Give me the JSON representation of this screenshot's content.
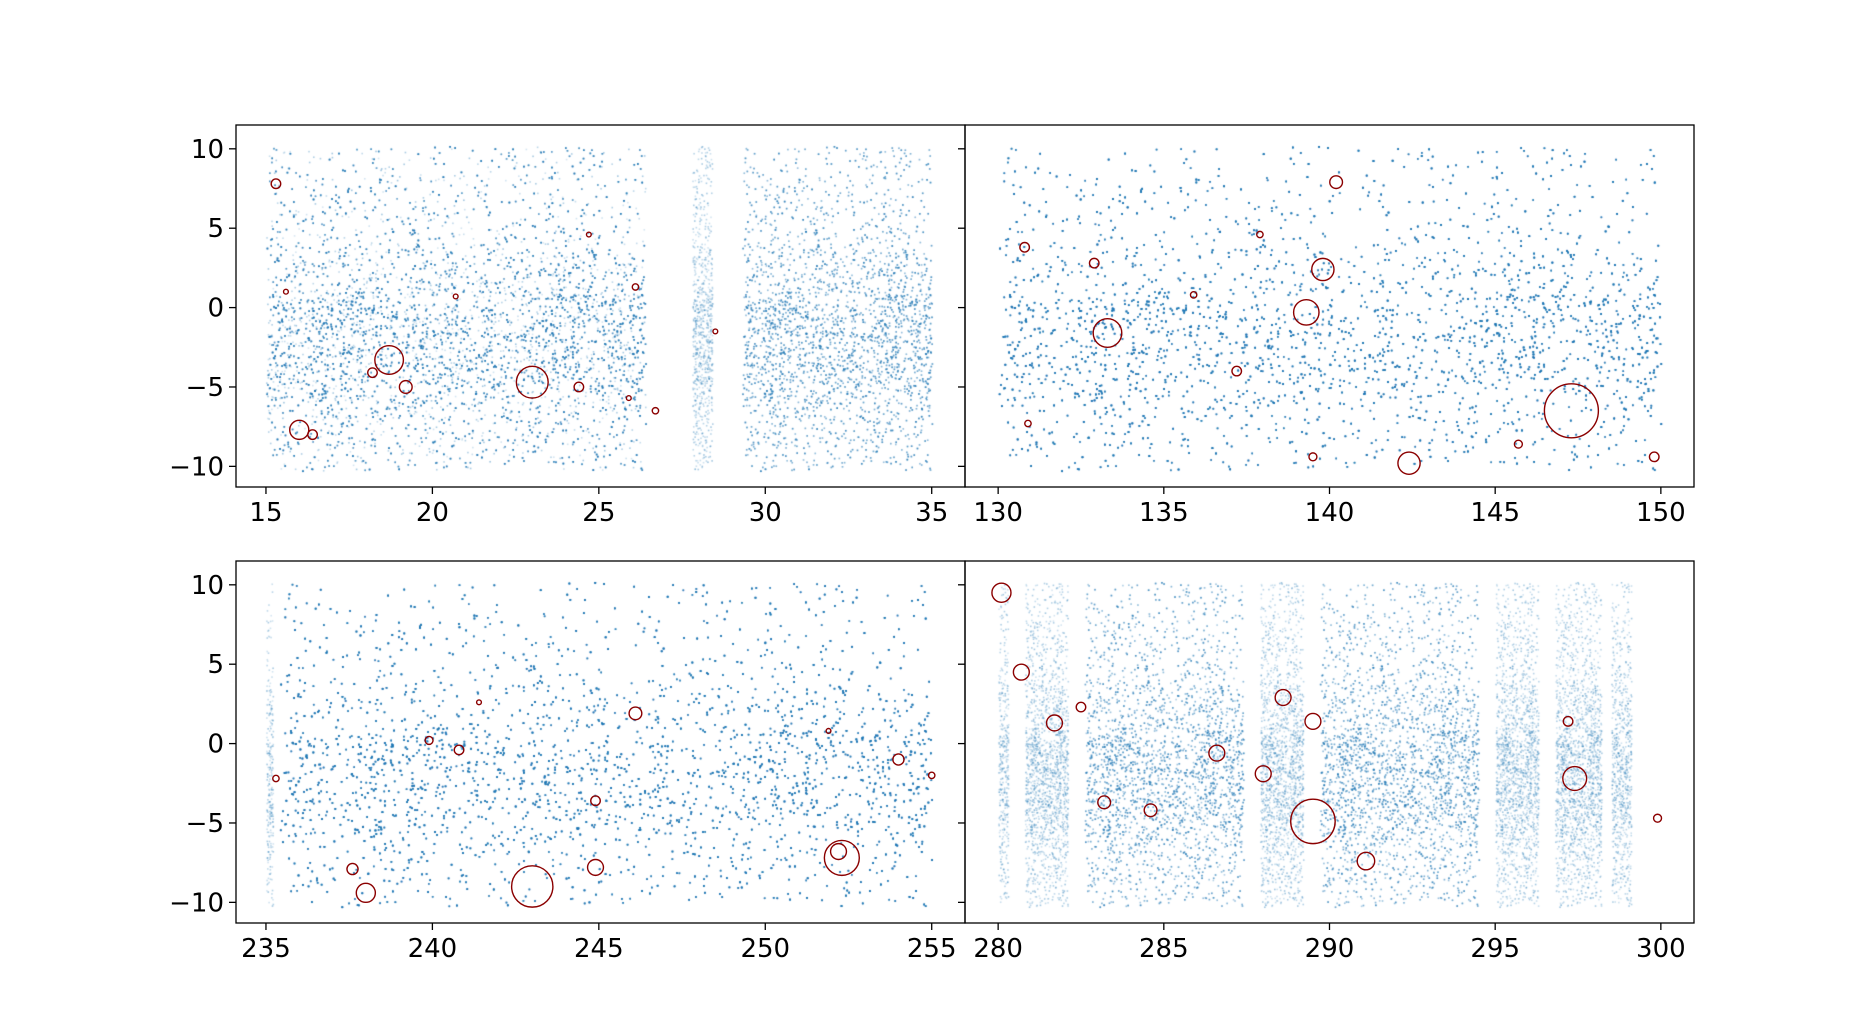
{
  "figure": {
    "colors": {
      "points": "#1f77b4",
      "circles": "#8b0000"
    }
  },
  "chart_data": [
    {
      "type": "scatter",
      "panel": "top-left",
      "xlim": [
        14.1,
        36.0
      ],
      "ylim": [
        -11.3,
        11.5
      ],
      "x_ticks": [
        15,
        20,
        25,
        30,
        35
      ],
      "x_tick_labels": [
        "15",
        "20",
        "25",
        "30",
        "35"
      ],
      "y_ticks": [
        10,
        5,
        0,
        -5,
        -10
      ],
      "y_tick_labels": [
        "10",
        "5",
        "0",
        "−5",
        "−10"
      ],
      "grid": false,
      "point_coverage_x": [
        [
          15.0,
          26.4
        ],
        [
          27.8,
          28.4
        ],
        [
          29.3,
          35.0
        ]
      ],
      "circles": [
        {
          "x": 15.3,
          "y": 7.8,
          "r": 0.3
        },
        {
          "x": 18.7,
          "y": -3.3,
          "r": 0.9
        },
        {
          "x": 23.0,
          "y": -4.7,
          "r": 1.0
        },
        {
          "x": 16.0,
          "y": -7.7,
          "r": 0.6
        },
        {
          "x": 16.4,
          "y": -8.0,
          "r": 0.3
        },
        {
          "x": 19.2,
          "y": -5.0,
          "r": 0.4
        },
        {
          "x": 18.2,
          "y": -4.1,
          "r": 0.3
        },
        {
          "x": 24.4,
          "y": -5.0,
          "r": 0.3
        },
        {
          "x": 26.1,
          "y": 1.3,
          "r": 0.2
        },
        {
          "x": 24.7,
          "y": 4.6,
          "r": 0.15
        },
        {
          "x": 26.7,
          "y": -6.5,
          "r": 0.2
        },
        {
          "x": 28.5,
          "y": -1.5,
          "r": 0.15
        },
        {
          "x": 15.6,
          "y": 1.0,
          "r": 0.15
        },
        {
          "x": 20.7,
          "y": 0.7,
          "r": 0.15
        },
        {
          "x": 25.9,
          "y": -5.7,
          "r": 0.15
        }
      ]
    },
    {
      "type": "scatter",
      "panel": "top-right",
      "xlim": [
        129.0,
        151.0
      ],
      "ylim": [
        -11.3,
        11.5
      ],
      "x_ticks": [
        130,
        135,
        140,
        145,
        150
      ],
      "x_tick_labels": [
        "130",
        "135",
        "140",
        "145",
        "150"
      ],
      "y_ticks": [
        10,
        5,
        0,
        -5,
        -10
      ],
      "y_tick_labels": [
        "10",
        "5",
        "0",
        "−5",
        "−10"
      ],
      "grid": false,
      "point_coverage_x": [
        [
          130.0,
          150.0
        ]
      ],
      "circles": [
        {
          "x": 147.3,
          "y": -6.5,
          "r": 1.7
        },
        {
          "x": 133.3,
          "y": -1.6,
          "r": 0.9
        },
        {
          "x": 139.3,
          "y": -0.3,
          "r": 0.8
        },
        {
          "x": 139.8,
          "y": 2.4,
          "r": 0.7
        },
        {
          "x": 142.4,
          "y": -9.8,
          "r": 0.7
        },
        {
          "x": 140.2,
          "y": 7.9,
          "r": 0.4
        },
        {
          "x": 132.9,
          "y": 2.8,
          "r": 0.3
        },
        {
          "x": 130.8,
          "y": 3.8,
          "r": 0.3
        },
        {
          "x": 137.2,
          "y": -4.0,
          "r": 0.3
        },
        {
          "x": 135.9,
          "y": 0.8,
          "r": 0.2
        },
        {
          "x": 139.5,
          "y": -9.4,
          "r": 0.25
        },
        {
          "x": 149.8,
          "y": -9.4,
          "r": 0.3
        },
        {
          "x": 145.7,
          "y": -8.6,
          "r": 0.25
        },
        {
          "x": 137.9,
          "y": 4.6,
          "r": 0.2
        },
        {
          "x": 130.9,
          "y": -7.3,
          "r": 0.2
        }
      ]
    },
    {
      "type": "scatter",
      "panel": "bottom-left",
      "xlim": [
        234.1,
        256.0
      ],
      "ylim": [
        -11.3,
        11.5
      ],
      "x_ticks": [
        235,
        240,
        245,
        250,
        255
      ],
      "x_tick_labels": [
        "235",
        "240",
        "245",
        "250",
        "255"
      ],
      "y_ticks": [
        10,
        5,
        0,
        -5,
        -10
      ],
      "y_tick_labels": [
        "10",
        "5",
        "0",
        "−5",
        "−10"
      ],
      "grid": false,
      "point_coverage_x": [
        [
          235.0,
          235.2
        ],
        [
          235.4,
          255.0
        ]
      ],
      "circles": [
        {
          "x": 243.0,
          "y": -9.0,
          "r": 1.3
        },
        {
          "x": 252.3,
          "y": -7.2,
          "r": 1.1
        },
        {
          "x": 252.2,
          "y": -6.8,
          "r": 0.5
        },
        {
          "x": 238.0,
          "y": -9.4,
          "r": 0.6
        },
        {
          "x": 244.9,
          "y": -7.8,
          "r": 0.5
        },
        {
          "x": 237.6,
          "y": -7.9,
          "r": 0.35
        },
        {
          "x": 246.1,
          "y": 1.9,
          "r": 0.4
        },
        {
          "x": 254.0,
          "y": -1.0,
          "r": 0.35
        },
        {
          "x": 240.8,
          "y": -0.4,
          "r": 0.3
        },
        {
          "x": 239.9,
          "y": 0.2,
          "r": 0.25
        },
        {
          "x": 244.9,
          "y": -3.6,
          "r": 0.3
        },
        {
          "x": 255.0,
          "y": -2.0,
          "r": 0.2
        },
        {
          "x": 235.3,
          "y": -2.2,
          "r": 0.2
        },
        {
          "x": 251.9,
          "y": 0.8,
          "r": 0.15
        },
        {
          "x": 241.4,
          "y": 2.6,
          "r": 0.15
        }
      ]
    },
    {
      "type": "scatter",
      "panel": "bottom-right",
      "xlim": [
        279.0,
        301.0
      ],
      "ylim": [
        -11.3,
        11.5
      ],
      "x_ticks": [
        280,
        285,
        290,
        295,
        300
      ],
      "x_tick_labels": [
        "280",
        "285",
        "290",
        "295",
        "300"
      ],
      "y_ticks": [
        10,
        5,
        0,
        -5,
        -10
      ],
      "y_tick_labels": [
        "10",
        "5",
        "0",
        "−5",
        "−10"
      ],
      "grid": false,
      "point_coverage_x": [
        [
          280.0,
          280.3
        ],
        [
          280.8,
          282.1
        ],
        [
          282.6,
          287.4
        ],
        [
          287.9,
          289.2
        ],
        [
          289.7,
          294.5
        ],
        [
          295.0,
          296.3
        ],
        [
          296.8,
          298.2
        ],
        [
          298.5,
          299.1
        ]
      ],
      "circles": [
        {
          "x": 289.5,
          "y": -4.9,
          "r": 1.4
        },
        {
          "x": 280.1,
          "y": 9.5,
          "r": 0.6
        },
        {
          "x": 280.7,
          "y": 4.5,
          "r": 0.5
        },
        {
          "x": 281.7,
          "y": 1.3,
          "r": 0.5
        },
        {
          "x": 288.6,
          "y": 2.9,
          "r": 0.5
        },
        {
          "x": 289.5,
          "y": 1.4,
          "r": 0.5
        },
        {
          "x": 297.4,
          "y": -2.2,
          "r": 0.75
        },
        {
          "x": 288.0,
          "y": -1.9,
          "r": 0.5
        },
        {
          "x": 286.6,
          "y": -0.6,
          "r": 0.5
        },
        {
          "x": 291.1,
          "y": -7.4,
          "r": 0.55
        },
        {
          "x": 284.6,
          "y": -4.2,
          "r": 0.4
        },
        {
          "x": 283.2,
          "y": -3.7,
          "r": 0.4
        },
        {
          "x": 297.2,
          "y": 1.4,
          "r": 0.3
        },
        {
          "x": 282.5,
          "y": 2.3,
          "r": 0.3
        },
        {
          "x": 299.9,
          "y": -4.7,
          "r": 0.25
        }
      ]
    }
  ]
}
